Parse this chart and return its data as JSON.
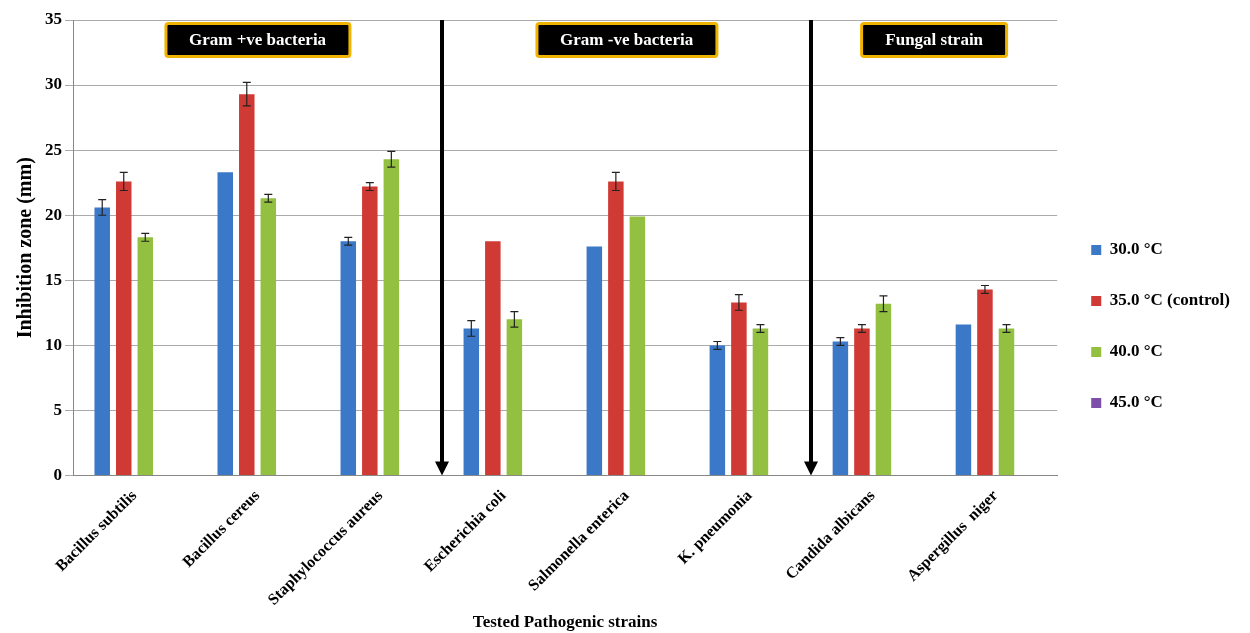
{
  "chart_data": {
    "type": "bar",
    "xlabel": "Tested Pathogenic strains",
    "ylabel": "Inhibition zone (mm)",
    "categories": [
      "Bacillus subtilis",
      "Bacillus cereus",
      "Staphylococcus aureus",
      "Escherichia coli",
      "Salmonella enterica",
      "K. pneumonia",
      "Candida albicans",
      "Aspergillus  niger"
    ],
    "series": [
      {
        "name": "30.0 °C",
        "color": "#3b78c8",
        "values": [
          20.6,
          23.3,
          18.0,
          11.3,
          17.6,
          10.0,
          10.3,
          11.6
        ],
        "errors": [
          0.6,
          null,
          0.3,
          0.6,
          null,
          0.3,
          0.3,
          null
        ]
      },
      {
        "name": "35.0 °C (control)",
        "color": "#d03a35",
        "values": [
          22.6,
          29.3,
          22.2,
          18.0,
          22.6,
          13.3,
          11.3,
          14.3
        ],
        "errors": [
          0.7,
          0.9,
          0.3,
          null,
          0.7,
          0.6,
          0.3,
          0.3
        ]
      },
      {
        "name": "40.0 °C",
        "color": "#93c040",
        "values": [
          18.3,
          21.3,
          24.3,
          12.0,
          19.9,
          11.3,
          13.2,
          11.3
        ],
        "errors": [
          0.3,
          0.3,
          0.6,
          0.6,
          null,
          0.3,
          0.6,
          0.3
        ]
      },
      {
        "name": "45.0 °C",
        "color": "#7e4fa8",
        "values": [
          null,
          null,
          null,
          null,
          null,
          null,
          null,
          null
        ]
      }
    ],
    "ylim": [
      0,
      35
    ],
    "yticks": [
      0,
      5,
      10,
      15,
      20,
      25,
      30,
      35
    ],
    "grid": "y",
    "legend": "right",
    "annotations": [
      "Gram +ve bacteria",
      "Gram -ve bacteria",
      "Fungal strain"
    ]
  }
}
